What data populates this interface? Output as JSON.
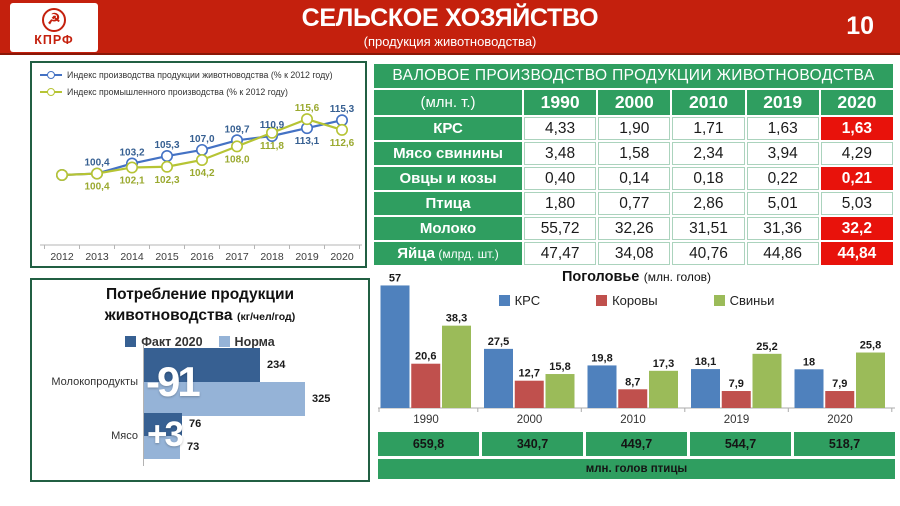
{
  "header": {
    "logo_text": "КПРФ",
    "title": "СЕЛЬСКОЕ ХОЗЯЙСТВО",
    "subtitle": "(продукция животноводства)",
    "page_number": "10"
  },
  "colors": {
    "header_red": "#c4200d",
    "header_red_dark": "#8a1707",
    "table_green": "#2f9e60",
    "panel_border_green": "#215f43",
    "highlight_red": "#e8120b",
    "line_blue": "#4472c4",
    "line_blue_label": "#365f91",
    "line_green": "#b6c434",
    "line_green_label": "#9aa92f",
    "bar_blue": "#4f81bd",
    "bar_red": "#c0504d",
    "bar_green": "#9bbb59",
    "fact_blue": "#376092",
    "norm_blue": "#95b3d7"
  },
  "chart_data": [
    {
      "name": "production-index-line",
      "type": "line",
      "x": [
        "2012",
        "2013",
        "2014",
        "2015",
        "2016",
        "2017",
        "2018",
        "2019",
        "2020"
      ],
      "ylim": [
        98,
        118
      ],
      "legend_position": "top-left",
      "series": [
        {
          "name": "Индекс производства продукции животноводства (% к 2012 году)",
          "color": "#4472c4",
          "label_color": "#365f91",
          "values": [
            100,
            100.4,
            103.2,
            105.3,
            107.0,
            109.7,
            110.9,
            113.1,
            115.3
          ],
          "labels": [
            "",
            "100,4",
            "103,2",
            "105,3",
            "107,0",
            "109,7",
            "110,9",
            "113,1",
            "115,3"
          ],
          "label_pos": [
            "",
            "above",
            "above",
            "above",
            "above",
            "above",
            "above",
            "below",
            "above"
          ]
        },
        {
          "name": "Индекс промышленного производства (% к 2012 году)",
          "color": "#b6c434",
          "label_color": "#9aa92f",
          "values": [
            100,
            100.4,
            102.1,
            102.3,
            104.2,
            108.0,
            111.8,
            115.6,
            112.6
          ],
          "labels": [
            "",
            "100,4",
            "102,1",
            "102,3",
            "104,2",
            "108,0",
            "111,8",
            "115,6",
            "112,6"
          ],
          "label_pos": [
            "",
            "below",
            "below",
            "below",
            "below",
            "below",
            "below",
            "above",
            "below"
          ]
        }
      ]
    },
    {
      "name": "consumption-bars",
      "type": "bar",
      "orientation": "horizontal",
      "title": "Потребление продукции животноводства",
      "title_units": "(кг/чел/год)",
      "categories": [
        "Молокопродукты",
        "Мясо"
      ],
      "series": [
        {
          "name": "Факт 2020",
          "color": "#376092",
          "values": [
            234,
            76
          ]
        },
        {
          "name": "Норма",
          "color": "#95b3d7",
          "values": [
            325,
            73
          ]
        }
      ],
      "value_labels": [
        [
          "234",
          "76"
        ],
        [
          "325",
          "73"
        ]
      ],
      "deltas": [
        "-91",
        "+3"
      ],
      "xmax": 325
    },
    {
      "name": "livestock-headcount",
      "type": "bar",
      "title": "Поголовье",
      "title_units": "(млн. голов)",
      "categories": [
        "1990",
        "2000",
        "2010",
        "2019",
        "2020"
      ],
      "ylim": [
        0,
        60
      ],
      "series": [
        {
          "name": "КРС",
          "color": "#4f81bd",
          "values": [
            57,
            27.5,
            19.8,
            18.1,
            18
          ],
          "labels": [
            "57",
            "27,5",
            "19,8",
            "18,1",
            "18"
          ]
        },
        {
          "name": "Коровы",
          "color": "#c0504d",
          "values": [
            20.6,
            12.7,
            8.7,
            7.9,
            7.9
          ],
          "labels": [
            "20,6",
            "12,7",
            "8,7",
            "7,9",
            "7,9"
          ]
        },
        {
          "name": "Свиньи",
          "color": "#9bbb59",
          "values": [
            38.3,
            15.8,
            17.3,
            25.2,
            25.8
          ],
          "labels": [
            "38,3",
            "15,8",
            "17,3",
            "25,2",
            "25,8"
          ]
        }
      ]
    }
  ],
  "production_table": {
    "title": "ВАЛОВОЕ ПРОИЗВОДСТВО ПРОДУКЦИИ ЖИВОТНОВОДСТВА",
    "unit_header": "(млн. т.)",
    "years": [
      "1990",
      "2000",
      "2010",
      "2019",
      "2020"
    ],
    "rows": [
      {
        "label": "КРС",
        "suffix": "",
        "values": [
          "4,33",
          "1,90",
          "1,71",
          "1,63",
          "1,63"
        ],
        "highlight": [
          4
        ]
      },
      {
        "label": "Мясо свинины",
        "suffix": "",
        "values": [
          "3,48",
          "1,58",
          "2,34",
          "3,94",
          "4,29"
        ],
        "highlight": []
      },
      {
        "label": "Овцы и козы",
        "suffix": "",
        "values": [
          "0,40",
          "0,14",
          "0,18",
          "0,22",
          "0,21"
        ],
        "highlight": [
          4
        ]
      },
      {
        "label": "Птица",
        "suffix": "",
        "values": [
          "1,80",
          "0,77",
          "2,86",
          "5,01",
          "5,03"
        ],
        "highlight": []
      },
      {
        "label": "Молоко",
        "suffix": "",
        "values": [
          "55,72",
          "32,26",
          "31,51",
          "31,36",
          "32,2"
        ],
        "highlight": [
          4
        ]
      },
      {
        "label": "Яйца",
        "suffix": "(млрд. шт.)",
        "values": [
          "47,47",
          "34,08",
          "40,76",
          "44,86",
          "44,84"
        ],
        "highlight": [
          4
        ]
      }
    ]
  },
  "poultry_table": {
    "values": [
      "659,8",
      "340,7",
      "449,7",
      "544,7",
      "518,7"
    ],
    "caption": "млн. голов птицы"
  }
}
